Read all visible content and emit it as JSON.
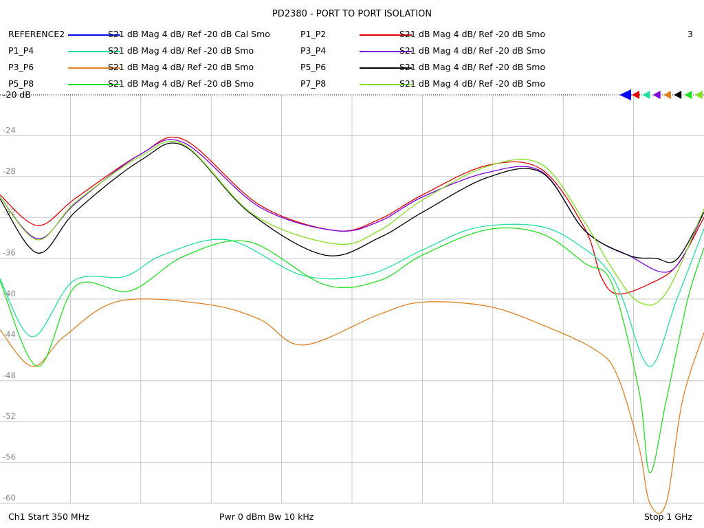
{
  "chart_data": {
    "type": "line",
    "title": "PD2380 - PORT TO PORT ISOLATION",
    "channel_number": "3",
    "x_unit": "MHz",
    "xlim": [
      350,
      1000
    ],
    "ylim": [
      -60,
      -20
    ],
    "y_ticks": [
      {
        "value": -20,
        "label": "-20 dB"
      },
      {
        "value": -24,
        "label": "-24"
      },
      {
        "value": -28,
        "label": "-28"
      },
      {
        "value": -32,
        "label": "-32"
      },
      {
        "value": -36,
        "label": "-36"
      },
      {
        "value": -40,
        "label": "-40"
      },
      {
        "value": -44,
        "label": "-44"
      },
      {
        "value": -48,
        "label": "-48"
      },
      {
        "value": -52,
        "label": "-52"
      },
      {
        "value": -56,
        "label": "-56"
      },
      {
        "value": -60,
        "label": "-60"
      }
    ],
    "grid": true,
    "legend_placement": "top",
    "series": [
      {
        "name": "REFERENCE2",
        "desc": "S21  dB Mag  4 dB/ Ref -20 dB  Cal Smo",
        "color": "#0000ff",
        "marker_color": "#0000ff",
        "x": [],
        "y": []
      },
      {
        "name": "P1_P2",
        "desc": "S21  dB Mag  4 dB/ Ref -20 dB  Smo",
        "color": "#e00000",
        "marker_color": "#e00000",
        "x": [
          350,
          385,
          420,
          480,
          520,
          590,
          660,
          700,
          740,
          800,
          850,
          890,
          905,
          920,
          950,
          975,
          1000
        ],
        "y": [
          -29.8,
          -32.8,
          -30.1,
          -25.8,
          -24.4,
          -30.8,
          -33.3,
          -32.2,
          -29.8,
          -26.9,
          -27.3,
          -33.1,
          -37.8,
          -39.5,
          -38.5,
          -36.7,
          -32
        ]
      },
      {
        "name": "P1_P4",
        "desc": "S21  dB Mag  4 dB/ Ref -20 dB  Smo",
        "color": "#20e0a0",
        "marker_color": "#20e0a0",
        "x": [
          350,
          380,
          418,
          465,
          500,
          560,
          630,
          690,
          740,
          790,
          850,
          890,
          912,
          925,
          950,
          975,
          1000
        ],
        "y": [
          -38,
          -43.7,
          -38.2,
          -37.8,
          -35.7,
          -34.2,
          -37.7,
          -37.6,
          -35.2,
          -33,
          -32.9,
          -35.1,
          -37.3,
          -40,
          -46.6,
          -40,
          -33.1
        ]
      },
      {
        "name": "P3_P4",
        "desc": "S21  dB Mag  4 dB/ Ref -20 dB  Smo",
        "color": "#8000e0",
        "marker_color": "#8000e0",
        "x": [
          350,
          385,
          420,
          480,
          520,
          590,
          660,
          700,
          740,
          800,
          850,
          890,
          930,
          970,
          1000
        ],
        "y": [
          -30,
          -34.1,
          -30.6,
          -25.8,
          -24.7,
          -31,
          -33.3,
          -32.4,
          -30,
          -27.6,
          -27.5,
          -33.3,
          -35.7,
          -37.2,
          -31.5
        ]
      },
      {
        "name": "P3_P6",
        "desc": "S21  dB Mag  4 dB/ Ref -20 dB  Smo",
        "color": "#e08020",
        "marker_color": "#e08020",
        "x": [
          350,
          380,
          410,
          460,
          540,
          590,
          630,
          700,
          740,
          800,
          850,
          900,
          920,
          940,
          950,
          965,
          980,
          1000
        ],
        "y": [
          -43,
          -46.6,
          -43.6,
          -40.2,
          -40.5,
          -42,
          -44.5,
          -41.5,
          -40.3,
          -40.7,
          -42.5,
          -45,
          -47.5,
          -54.5,
          -60,
          -60,
          -50,
          -43.3
        ]
      },
      {
        "name": "P5_P6",
        "desc": "S21  dB Mag  4 dB/ Ref -20 dB  Smo",
        "color": "#000000",
        "marker_color": "#000000",
        "x": [
          350,
          385,
          420,
          480,
          520,
          580,
          650,
          700,
          740,
          800,
          850,
          890,
          930,
          955,
          975,
          1000
        ],
        "y": [
          -30.2,
          -35.5,
          -31.4,
          -26.4,
          -25,
          -31.5,
          -35.7,
          -34,
          -31.5,
          -28.1,
          -27.6,
          -33.3,
          -35.7,
          -36,
          -36.1,
          -31.5
        ]
      },
      {
        "name": "P5_P8",
        "desc": "S21  dB Mag  4 dB/ Ref -20 dB  Smo",
        "color": "#20e020",
        "marker_color": "#20e020",
        "x": [
          350,
          385,
          420,
          470,
          520,
          580,
          650,
          700,
          740,
          800,
          850,
          890,
          915,
          940,
          950,
          965,
          985,
          1000
        ],
        "y": [
          -38.2,
          -46.6,
          -38.7,
          -39.2,
          -35.8,
          -34.4,
          -38.6,
          -38.2,
          -35.7,
          -33.2,
          -33.6,
          -36.5,
          -38.5,
          -49,
          -57,
          -50,
          -40,
          -35
        ]
      },
      {
        "name": "P7_P8",
        "desc": "S21  dB Mag  4 dB/ Ref -20 dB  Smo",
        "color": "#80e020",
        "marker_color": "#80e020",
        "x": [
          350,
          385,
          420,
          480,
          520,
          585,
          660,
          700,
          740,
          800,
          850,
          890,
          915,
          940,
          965,
          1000
        ],
        "y": [
          -30,
          -34.2,
          -30.5,
          -26,
          -24.9,
          -31.8,
          -34.6,
          -33.3,
          -30.3,
          -27,
          -26.8,
          -32.5,
          -37,
          -40.3,
          -39.4,
          -31.2
        ]
      }
    ]
  },
  "footer": {
    "start": "Ch1  Start  350 MHz",
    "power": "Pwr  0 dBm  Bw  10 kHz",
    "stop": "Stop  1 GHz"
  }
}
